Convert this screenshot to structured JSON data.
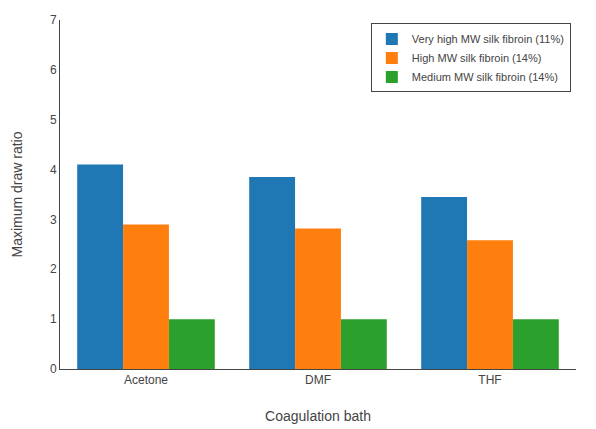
{
  "chart_data": {
    "type": "bar",
    "xlabel": "Coagulation bath",
    "ylabel": "Maximum draw ratio",
    "categories": [
      "Acetone",
      "DMF",
      "THF"
    ],
    "series": [
      {
        "name": "Very high MW silk fibroin (11%)",
        "values": [
          4.1,
          3.85,
          3.45
        ]
      },
      {
        "name": "High MW silk fibroin (14%)",
        "values": [
          2.9,
          2.82,
          2.58
        ]
      },
      {
        "name": "Medium MW silk fibroin (14%)",
        "values": [
          1.0,
          1.0,
          1.0
        ]
      }
    ],
    "ylim": [
      0,
      7
    ],
    "yticks": [
      0,
      1,
      2,
      3,
      4,
      5,
      6,
      7
    ],
    "grid": false,
    "legend": "upper right"
  }
}
